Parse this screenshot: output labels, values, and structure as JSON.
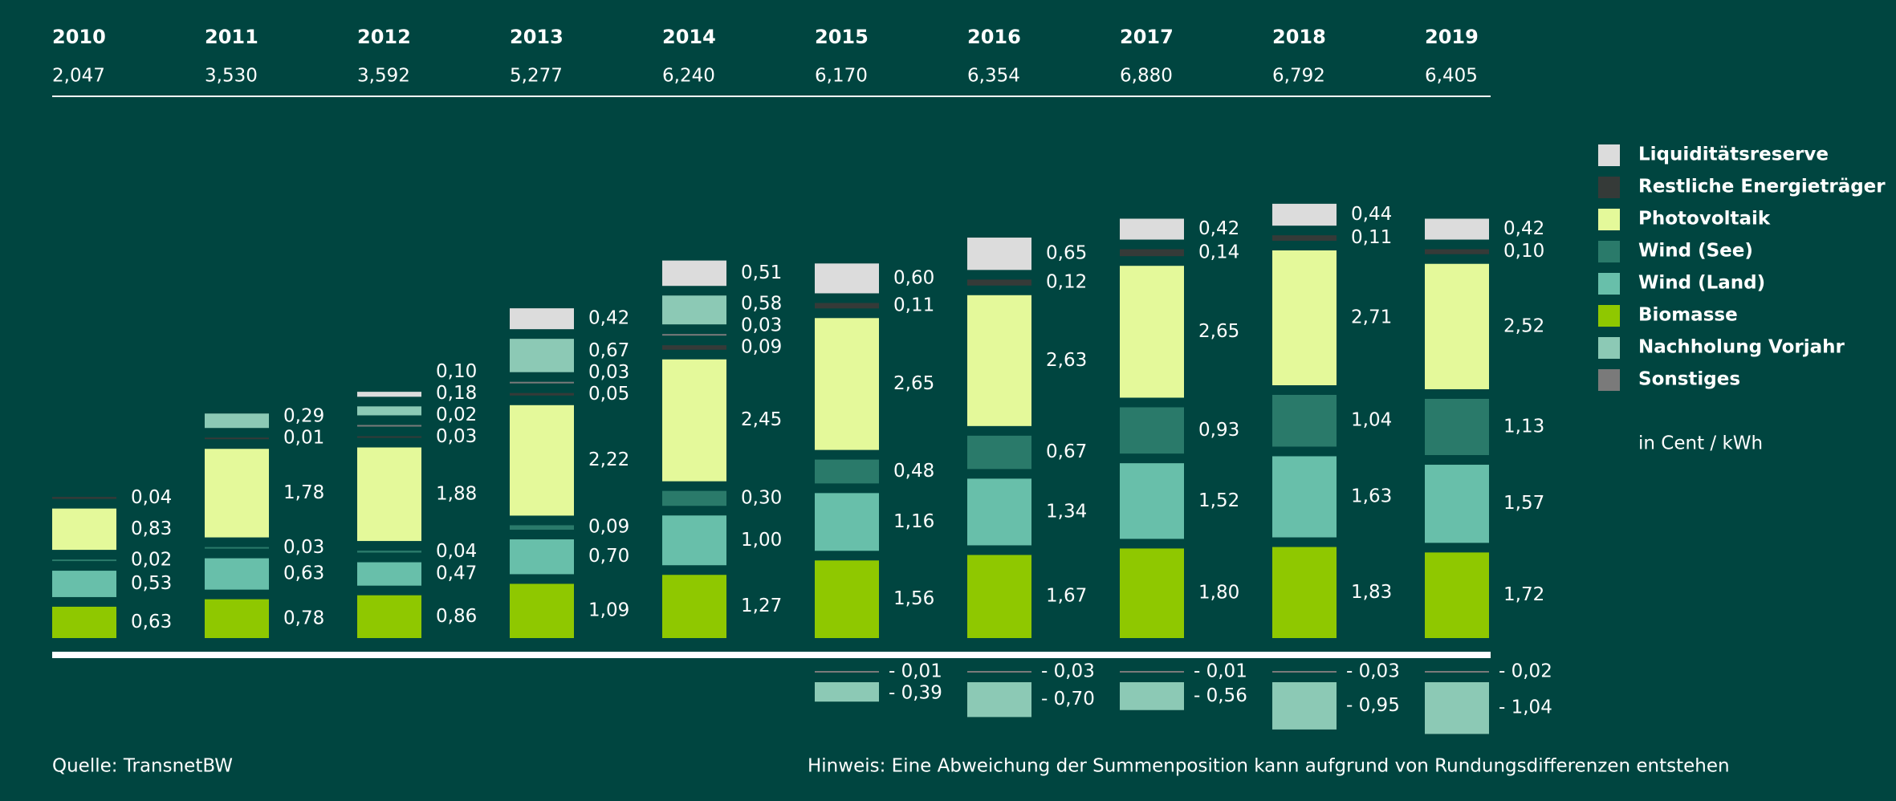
{
  "chart_data": {
    "type": "bar",
    "stacked": true,
    "categories": [
      "2010",
      "2011",
      "2012",
      "2013",
      "2014",
      "2015",
      "2016",
      "2017",
      "2018",
      "2019"
    ],
    "totals": {
      "values": [
        2.047,
        3.53,
        3.592,
        5.277,
        6.24,
        6.17,
        6.354,
        6.88,
        6.792,
        6.405
      ],
      "value_labels": [
        "2,047",
        "3,530",
        "3,592",
        "5,277",
        "6,240",
        "6,170",
        "6,354",
        "6,880",
        "6,792",
        "6,405"
      ]
    },
    "series": [
      {
        "name": "Liquiditätsreserve",
        "color": "#dcdcdc",
        "values": [
          null,
          null,
          0.1,
          0.42,
          0.51,
          0.6,
          0.65,
          0.42,
          0.44,
          0.42
        ],
        "value_labels": [
          null,
          null,
          "0,10",
          "0,42",
          "0,51",
          "0,60",
          "0,65",
          "0,42",
          "0,44",
          "0,42"
        ]
      },
      {
        "name": "Restliche Energieträger",
        "color": "#353a38",
        "values": [
          0.04,
          0.01,
          0.03,
          0.05,
          0.09,
          0.11,
          0.12,
          0.14,
          0.11,
          0.1
        ],
        "value_labels": [
          "0,04",
          "0,01",
          "0,03",
          "0,05",
          "0,09",
          "0,11",
          "0,12",
          "0,14",
          "0,11",
          "0,10"
        ]
      },
      {
        "name": "Photovoltaik",
        "color": "#e4f99a",
        "values": [
          0.83,
          1.78,
          1.88,
          2.22,
          2.45,
          2.65,
          2.63,
          2.65,
          2.71,
          2.52
        ],
        "value_labels": [
          "0,83",
          "1,78",
          "1,88",
          "2,22",
          "2,45",
          "2,65",
          "2,63",
          "2,65",
          "2,71",
          "2,52"
        ]
      },
      {
        "name": "Wind (See)",
        "color": "#2a7a6a",
        "values": [
          0.02,
          0.03,
          0.04,
          0.09,
          0.3,
          0.48,
          0.67,
          0.93,
          1.04,
          1.13
        ],
        "value_labels": [
          "0,02",
          "0,03",
          "0,04",
          "0,09",
          "0,30",
          "0,48",
          "0,67",
          "0,93",
          "1,04",
          "1,13"
        ]
      },
      {
        "name": "Wind (Land)",
        "color": "#68bfaa",
        "values": [
          0.53,
          0.63,
          0.47,
          0.7,
          1.0,
          1.16,
          1.34,
          1.52,
          1.63,
          1.57
        ],
        "value_labels": [
          "0,53",
          "0,63",
          "0,47",
          "0,70",
          "1,00",
          "1,16",
          "1,34",
          "1,52",
          "1,63",
          "1,57"
        ]
      },
      {
        "name": "Biomasse",
        "color": "#8fc800",
        "values": [
          0.63,
          0.78,
          0.86,
          1.09,
          1.27,
          1.56,
          1.67,
          1.8,
          1.83,
          1.72
        ],
        "value_labels": [
          "0,63",
          "0,78",
          "0,86",
          "1,09",
          "1,27",
          "1,56",
          "1,67",
          "1,80",
          "1,83",
          "1,72"
        ]
      },
      {
        "name": "Nachholung Vorjahr",
        "color": "#8cc9b5",
        "values": [
          null,
          0.29,
          0.18,
          0.67,
          0.58,
          -0.39,
          -0.7,
          -0.56,
          -0.95,
          -1.04
        ],
        "value_labels": [
          null,
          "0,29",
          "0,18",
          "0,67",
          "0,58",
          "- 0,39",
          "- 0,70",
          "- 0,56",
          "- 0,95",
          "- 1,04"
        ]
      },
      {
        "name": "Sonstiges",
        "color": "#7a7a7a",
        "values": [
          null,
          null,
          0.02,
          0.03,
          0.03,
          -0.01,
          -0.03,
          -0.01,
          -0.03,
          -0.02
        ],
        "value_labels": [
          null,
          null,
          "0,02",
          "0,03",
          "0,03",
          "- 0,01",
          "- 0,03",
          "- 0,01",
          "- 0,03",
          "- 0,02"
        ]
      }
    ],
    "unit": "in Cent / kWh",
    "source": "Quelle: TransnetBW",
    "note": "Hinweis: Eine Abweichung der Summenposition kann aufgrund von Rundungsdifferenzen entstehen"
  }
}
